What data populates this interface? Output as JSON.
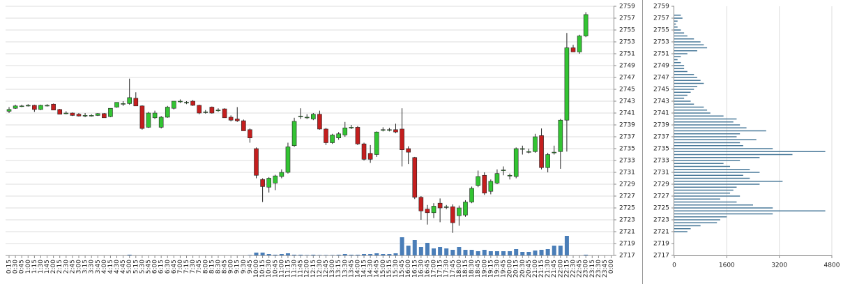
{
  "chart_data": [
    {
      "type": "candlestick",
      "categories": [
        "0:15",
        "0:30",
        "0:45",
        "1:00",
        "1:15",
        "1:30",
        "1:45",
        "2:00",
        "2:15",
        "2:30",
        "2:45",
        "3:00",
        "3:15",
        "3:30",
        "3:45",
        "4:00",
        "4:15",
        "4:30",
        "4:45",
        "5:00",
        "5:15",
        "5:30",
        "5:45",
        "6:00",
        "6:15",
        "6:30",
        "6:45",
        "7:00",
        "7:15",
        "7:30",
        "7:45",
        "8:00",
        "8:15",
        "8:30",
        "8:45",
        "9:00",
        "9:15",
        "9:30",
        "9:45",
        "10:00",
        "10:15",
        "10:30",
        "10:45",
        "11:00",
        "11:15",
        "11:30",
        "11:45",
        "12:00",
        "12:15",
        "12:30",
        "12:45",
        "13:00",
        "13:15",
        "13:30",
        "13:45",
        "14:00",
        "14:15",
        "14:30",
        "14:45",
        "15:00",
        "15:15",
        "15:30",
        "15:45",
        "16:00",
        "16:15",
        "16:30",
        "16:45",
        "17:00",
        "17:15",
        "17:30",
        "17:45",
        "18:00",
        "18:15",
        "18:30",
        "18:45",
        "19:00",
        "19:15",
        "19:30",
        "19:45",
        "20:00",
        "20:15",
        "20:30",
        "20:45",
        "21:00",
        "21:15",
        "21:30",
        "21:45",
        "22:00",
        "22:15",
        "22:30",
        "22:45",
        "23:00",
        "23:15",
        "23:30",
        "23:45",
        "0:00"
      ],
      "open": [
        2741.3,
        2741.8,
        2742.2,
        2742.3,
        2742.3,
        2741.6,
        2742.3,
        2742.5,
        2741.6,
        2741,
        2741,
        2740.8,
        2740.6,
        2740.6,
        2740.6,
        2740.9,
        2740.4,
        2742,
        2742.6,
        2742.6,
        2743.5,
        2742.2,
        2738.6,
        2740.2,
        2738.6,
        2740.3,
        2741.8,
        2743,
        2742.8,
        2743,
        2742.3,
        2741.2,
        2742,
        2741.5,
        2741.7,
        2740.3,
        2740,
        2739.7,
        2738.2,
        2735,
        2729.8,
        2728.5,
        2729.2,
        2730.3,
        2731,
        2735.5,
        2740.5,
        2740.3,
        2740,
        2740.8,
        2738.3,
        2736,
        2736.8,
        2737.3,
        2738.6,
        2738.6,
        2735.8,
        2734.2,
        2734,
        2738.2,
        2738.2,
        2738.2,
        2738.3,
        2735,
        2733.5,
        2726.8,
        2724.8,
        2724.2,
        2725.8,
        2725.2,
        2725.2,
        2723.7,
        2723.8,
        2726,
        2728.8,
        2730.5,
        2727.8,
        2729.2,
        2731.4,
        2730.5,
        2730.3,
        2735,
        2734.5,
        2734.5,
        2737.2,
        2731.8,
        2734.4,
        2734.5,
        2739.8,
        2752,
        2751.3,
        2754,
        null,
        null,
        null,
        null
      ],
      "high": [
        2742,
        2742.4,
        2742.4,
        2742.5,
        2742.4,
        2742.4,
        2742.5,
        2742.6,
        2741.7,
        2741.3,
        2741.1,
        2741,
        2741,
        2740.8,
        2741,
        2741,
        2741.8,
        2742.8,
        2743,
        2746.8,
        2744.5,
        2742.3,
        2741.2,
        2741.4,
        2740.5,
        2742.2,
        2743,
        2743.3,
        2743,
        2743.2,
        2742.4,
        2741.5,
        2742.1,
        2741.8,
        2741.8,
        2740.6,
        2742,
        2739.9,
        2738.4,
        2735.2,
        2730,
        2730.2,
        2730.6,
        2731.5,
        2736,
        2740.2,
        2741.8,
        2740.8,
        2741,
        2741.4,
        2738.5,
        2737.5,
        2737.8,
        2739.5,
        2739,
        2738.8,
        2736,
        2735.6,
        2737.9,
        2738.6,
        2738.5,
        2739.2,
        2741.8,
        2735.4,
        2733.6,
        2727,
        2725.5,
        2725.8,
        2726.6,
        2725.5,
        2725.6,
        2725.4,
        2726.3,
        2728.6,
        2731.3,
        2731,
        2729.8,
        2731.5,
        2732,
        2730.8,
        2735.2,
        2735.5,
        2735,
        2737.5,
        2738.4,
        2734.3,
        2735.5,
        2740,
        2754.5,
        2752.5,
        2754.2,
        2758,
        null,
        null,
        null,
        null
      ],
      "low": [
        2741,
        2741.7,
        2742,
        2742.1,
        2741.2,
        2741.5,
        2742.1,
        2741.5,
        2740.8,
        2740.8,
        2740.5,
        2740.4,
        2740.3,
        2740.4,
        2740.5,
        2740.2,
        2740.3,
        2741.9,
        2742.2,
        2742.4,
        2742.2,
        2738.2,
        2738.5,
        2740,
        2738.4,
        2740.2,
        2741.6,
        2742.7,
        2742.5,
        2742.2,
        2740.8,
        2740.9,
        2740.9,
        2741.2,
        2740.2,
        2739.6,
        2739.5,
        2738,
        2736,
        2730,
        2726,
        2727.6,
        2728,
        2730,
        2730.8,
        2735.3,
        2740,
        2740,
        2739.8,
        2738.2,
        2735.6,
        2735.8,
        2736.5,
        2737,
        2738.3,
        2735.6,
        2733,
        2732.6,
        2733.6,
        2737.9,
        2737.9,
        2737.6,
        2732,
        2732.4,
        2726.5,
        2723,
        2722.2,
        2723.3,
        2722.6,
        2724.8,
        2720.8,
        2722,
        2723.5,
        2725.8,
        2728.5,
        2727.2,
        2727.3,
        2729,
        2730.5,
        2729.8,
        2730,
        2734,
        2734.2,
        2734.3,
        2731.5,
        2731,
        2734,
        2731.6,
        2734.5,
        2751.3,
        2751,
        2753.8,
        null,
        null,
        null,
        null
      ],
      "close": [
        2741.6,
        2742.2,
        2742.2,
        2742.3,
        2741.6,
        2742.3,
        2742.3,
        2741.5,
        2740.8,
        2741,
        2740.6,
        2740.5,
        2740.6,
        2740.6,
        2740.9,
        2740.2,
        2741.8,
        2742.8,
        2742.6,
        2743.6,
        2742.2,
        2738.4,
        2741,
        2741,
        2740.3,
        2742,
        2743,
        2743,
        2742.8,
        2742.3,
        2741,
        2741.2,
        2741,
        2741.5,
        2740.2,
        2739.8,
        2739.7,
        2738,
        2736.8,
        2730.5,
        2728.6,
        2730,
        2730.4,
        2731,
        2735.3,
        2739.6,
        2740.5,
        2740.3,
        2740.8,
        2738.3,
        2736,
        2737.3,
        2737.5,
        2738.5,
        2738.6,
        2735.8,
        2733.2,
        2733.2,
        2737.8,
        2738.2,
        2738.2,
        2737.8,
        2734.8,
        2734.4,
        2726.8,
        2724.5,
        2724.2,
        2725.3,
        2725,
        2725.2,
        2722.5,
        2725,
        2726,
        2728.3,
        2730.3,
        2727.5,
        2729.5,
        2730.8,
        2731.4,
        2730.5,
        2735,
        2735,
        2734.5,
        2737,
        2731.8,
        2734,
        2734.4,
        2739.8,
        2752,
        2751.3,
        2754,
        2757.6,
        null,
        null,
        null,
        null
      ],
      "volume": [
        0,
        0,
        0,
        0,
        0,
        0,
        0,
        0,
        0,
        0,
        0,
        0,
        0,
        0,
        0,
        0,
        0,
        0,
        0,
        1,
        0,
        0,
        0,
        0,
        0,
        0,
        0,
        0,
        0,
        0,
        0,
        0,
        0,
        0,
        0,
        0,
        0,
        0,
        0.5,
        4,
        4,
        2,
        1,
        2,
        3,
        1,
        1,
        0.5,
        1,
        0.5,
        0.5,
        0.5,
        1,
        2,
        1,
        1,
        2,
        2,
        3,
        2,
        2,
        3,
        26,
        14,
        22,
        12,
        18,
        10,
        12,
        10,
        8,
        12,
        8,
        8,
        6,
        8,
        6,
        6,
        6,
        6,
        9,
        5,
        5,
        7,
        8,
        9,
        14,
        14,
        28,
        0,
        0,
        1,
        null,
        null,
        null,
        null
      ],
      "up_color": "#33c433",
      "down_color": "#c41e1e",
      "volume_color": "#4a7eb8",
      "ylim": [
        2717,
        2759
      ],
      "yticks": [
        2717,
        2719,
        2721,
        2723,
        2725,
        2727,
        2729,
        2731,
        2733,
        2735,
        2737,
        2739,
        2741,
        2743,
        2745,
        2747,
        2749,
        2751,
        2753,
        2755,
        2757,
        2759
      ],
      "grid": true
    },
    {
      "type": "horizontal-bar",
      "y": [
        2757.5,
        2757,
        2756.5,
        2756,
        2755.5,
        2755,
        2754.5,
        2754,
        2753.5,
        2753,
        2752.5,
        2752,
        2751.5,
        2751,
        2750.5,
        2750,
        2749.5,
        2749,
        2748.5,
        2748,
        2747.5,
        2747,
        2746.5,
        2746,
        2745.5,
        2745,
        2744.5,
        2744,
        2743.5,
        2743,
        2742.5,
        2742,
        2741.5,
        2741,
        2740.5,
        2740,
        2739.5,
        2739,
        2738.5,
        2738,
        2737.5,
        2737,
        2736.5,
        2736,
        2735.5,
        2735,
        2734.5,
        2734,
        2733.5,
        2733,
        2732.5,
        2732,
        2731.5,
        2731,
        2730.5,
        2730,
        2729.5,
        2729,
        2728.5,
        2728,
        2727.5,
        2727,
        2726.5,
        2726,
        2725.5,
        2725,
        2724.5,
        2724,
        2723.5,
        2723,
        2722.5,
        2722,
        2721.5,
        2721
      ],
      "values": [
        200,
        250,
        100,
        50,
        100,
        200,
        300,
        400,
        600,
        800,
        900,
        1000,
        700,
        400,
        200,
        100,
        200,
        300,
        300,
        400,
        600,
        700,
        800,
        900,
        700,
        600,
        500,
        400,
        300,
        500,
        600,
        900,
        1000,
        1100,
        1500,
        1900,
        1800,
        2000,
        2200,
        2800,
        2000,
        1900,
        2500,
        2000,
        2100,
        3000,
        4600,
        3600,
        2600,
        2000,
        1500,
        1700,
        2300,
        2600,
        2100,
        2300,
        3300,
        2600,
        1900,
        1800,
        1700,
        2000,
        1400,
        1900,
        2400,
        3000,
        4600,
        3000,
        1600,
        1400,
        1300,
        800,
        500,
        400
      ],
      "color": "#4a7a9a",
      "xlim": [
        0,
        4800
      ],
      "xticks": [
        0,
        1600,
        3200,
        4800
      ],
      "ylim": [
        2717,
        2759
      ],
      "yticks": [
        2717,
        2719,
        2721,
        2723,
        2725,
        2727,
        2729,
        2731,
        2733,
        2735,
        2737,
        2739,
        2741,
        2743,
        2745,
        2747,
        2749,
        2751,
        2753,
        2755,
        2757,
        2759
      ],
      "grid": true
    }
  ]
}
